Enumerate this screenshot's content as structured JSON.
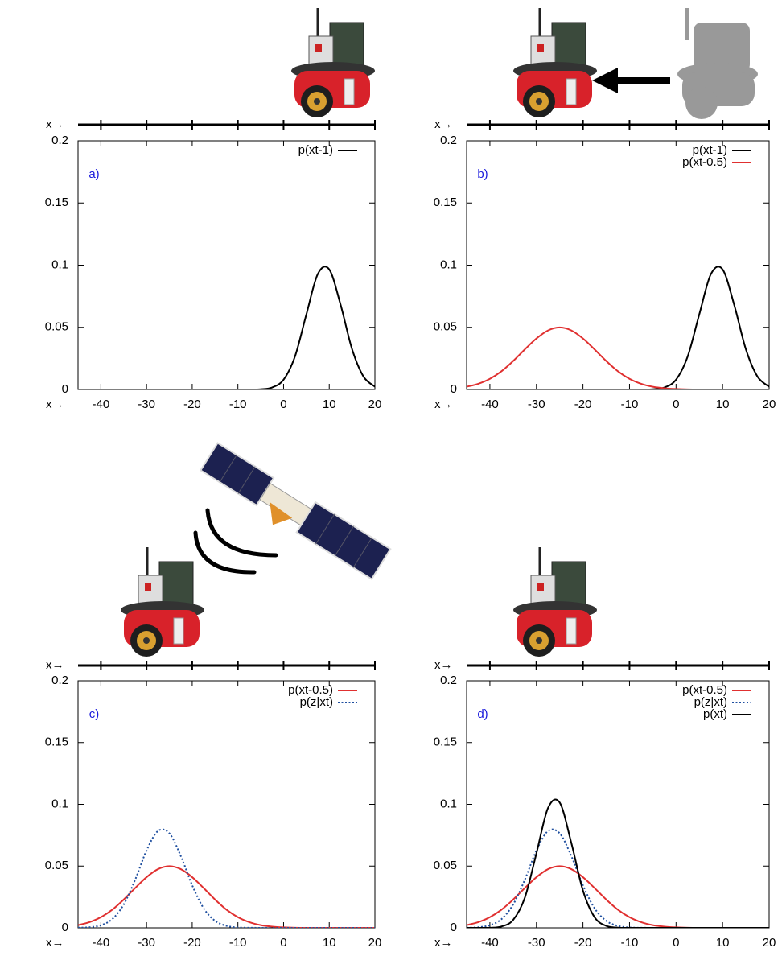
{
  "chart_data": [
    {
      "type": "line",
      "panel_label": "a)",
      "axis_label": "x→",
      "track_label": "x→",
      "x": [
        -45,
        -42.5,
        -40,
        -37.5,
        -35,
        -32.5,
        -30,
        -27.5,
        -25,
        -22.5,
        -20,
        -17.5,
        -15,
        -12.5,
        -10,
        -7.5,
        -5,
        -2.5,
        0,
        2.5,
        5,
        7.5,
        10,
        12.5,
        15,
        17.5,
        20
      ],
      "xlim": [
        -45,
        20
      ],
      "xticks": [
        -40,
        -30,
        -20,
        -10,
        0,
        10,
        20
      ],
      "ylim": [
        0,
        0.2
      ],
      "yticks": [
        0,
        0.05,
        0.1,
        0.15,
        0.2
      ],
      "series": [
        {
          "name": "p(xt-1)",
          "color": "#000000",
          "dash": "solid",
          "values": [
            0,
            0,
            0,
            0,
            0,
            0,
            0,
            0,
            0,
            0,
            0,
            0,
            0,
            0,
            0,
            0,
            0.0002,
            0.0016,
            0.0079,
            0.0266,
            0.0605,
            0.0929,
            0.0966,
            0.068,
            0.0324,
            0.0104,
            0.0023
          ]
        }
      ]
    },
    {
      "type": "line",
      "panel_label": "b)",
      "axis_label": "x→",
      "track_label": "x→",
      "x": [
        -45,
        -42.5,
        -40,
        -37.5,
        -35,
        -32.5,
        -30,
        -27.5,
        -25,
        -22.5,
        -20,
        -17.5,
        -15,
        -12.5,
        -10,
        -7.5,
        -5,
        -2.5,
        0,
        2.5,
        5,
        7.5,
        10,
        12.5,
        15,
        17.5,
        20
      ],
      "xlim": [
        -45,
        20
      ],
      "xticks": [
        -40,
        -30,
        -20,
        -10,
        0,
        10,
        20
      ],
      "ylim": [
        0,
        0.2
      ],
      "yticks": [
        0,
        0.05,
        0.1,
        0.15,
        0.2
      ],
      "series": [
        {
          "name": "p(xt-1)",
          "color": "#000000",
          "dash": "solid",
          "values": [
            0,
            0,
            0,
            0,
            0,
            0,
            0,
            0,
            0,
            0,
            0,
            0,
            0,
            0,
            0,
            0,
            0.0002,
            0.0016,
            0.0079,
            0.0266,
            0.0605,
            0.0929,
            0.0966,
            0.068,
            0.0324,
            0.0104,
            0.0023
          ]
        },
        {
          "name": "p(xt-0.5)",
          "color": "#e03030",
          "dash": "solid",
          "values": [
            0.0022,
            0.0046,
            0.0086,
            0.0147,
            0.0229,
            0.0322,
            0.041,
            0.0475,
            0.0499,
            0.0475,
            0.041,
            0.0322,
            0.0229,
            0.0147,
            0.0086,
            0.0046,
            0.0022,
            0.001,
            0.0004,
            0.0001,
            0,
            0,
            0,
            0,
            0,
            0,
            0
          ]
        }
      ]
    },
    {
      "type": "line",
      "panel_label": "c)",
      "axis_label": "x→",
      "track_label": "x→",
      "x": [
        -45,
        -42.5,
        -40,
        -37.5,
        -35,
        -32.5,
        -30,
        -27.5,
        -25,
        -22.5,
        -20,
        -17.5,
        -15,
        -12.5,
        -10,
        -7.5,
        -5,
        -2.5,
        0,
        2.5,
        5,
        7.5,
        10,
        12.5,
        15,
        17.5,
        20
      ],
      "xlim": [
        -45,
        20
      ],
      "xticks": [
        -40,
        -30,
        -20,
        -10,
        0,
        10,
        20
      ],
      "ylim": [
        0,
        0.2
      ],
      "yticks": [
        0,
        0.05,
        0.1,
        0.15,
        0.2
      ],
      "series": [
        {
          "name": "p(xt-0.5)",
          "color": "#e03030",
          "dash": "solid",
          "values": [
            0.0022,
            0.0046,
            0.0086,
            0.0147,
            0.0229,
            0.0322,
            0.041,
            0.0475,
            0.0499,
            0.0475,
            0.041,
            0.0322,
            0.0229,
            0.0147,
            0.0086,
            0.0046,
            0.0022,
            0.001,
            0.0004,
            0.0001,
            0,
            0,
            0,
            0,
            0,
            0,
            0
          ]
        },
        {
          "name": "p(z|xt)",
          "color": "#2050a0",
          "dash": "dotted",
          "values": [
            0.0001,
            0.0005,
            0.0021,
            0.0071,
            0.0189,
            0.0389,
            0.0626,
            0.0784,
            0.0765,
            0.0581,
            0.0344,
            0.0158,
            0.0057,
            0.0016,
            0.0003,
            0.0001,
            0,
            0,
            0,
            0,
            0,
            0,
            0,
            0,
            0,
            0,
            0
          ]
        }
      ]
    },
    {
      "type": "line",
      "panel_label": "d)",
      "axis_label": "x→",
      "track_label": "x→",
      "x": [
        -45,
        -42.5,
        -40,
        -37.5,
        -35,
        -32.5,
        -30,
        -27.5,
        -25,
        -22.5,
        -20,
        -17.5,
        -15,
        -12.5,
        -10,
        -7.5,
        -5,
        -2.5,
        0,
        2.5,
        5,
        7.5,
        10,
        12.5,
        15,
        17.5,
        20
      ],
      "xlim": [
        -45,
        20
      ],
      "xticks": [
        -40,
        -30,
        -20,
        -10,
        0,
        10,
        20
      ],
      "ylim": [
        0,
        0.2
      ],
      "yticks": [
        0,
        0.05,
        0.1,
        0.15,
        0.2
      ],
      "series": [
        {
          "name": "p(xt-0.5)",
          "color": "#e03030",
          "dash": "solid",
          "values": [
            0.0022,
            0.0046,
            0.0086,
            0.0147,
            0.0229,
            0.0322,
            0.041,
            0.0475,
            0.0499,
            0.0475,
            0.041,
            0.0322,
            0.0229,
            0.0147,
            0.0086,
            0.0046,
            0.0022,
            0.001,
            0.0004,
            0.0001,
            0,
            0,
            0,
            0,
            0,
            0,
            0
          ]
        },
        {
          "name": "p(z|xt)",
          "color": "#2050a0",
          "dash": "dotted",
          "values": [
            0.0001,
            0.0005,
            0.0021,
            0.0071,
            0.0189,
            0.0389,
            0.0626,
            0.0784,
            0.0765,
            0.0581,
            0.0344,
            0.0158,
            0.0057,
            0.0016,
            0.0003,
            0.0001,
            0,
            0,
            0,
            0,
            0,
            0,
            0,
            0,
            0,
            0,
            0
          ]
        },
        {
          "name": "p(xt)",
          "color": "#000000",
          "dash": "solid",
          "values": [
            0,
            0,
            0.0001,
            0.0011,
            0.0064,
            0.0243,
            0.0603,
            0.0971,
            0.1014,
            0.0687,
            0.0302,
            0.0086,
            0.0016,
            0.0002,
            0,
            0,
            0,
            0,
            0,
            0,
            0,
            0,
            0,
            0,
            0,
            0,
            0
          ]
        }
      ]
    }
  ]
}
